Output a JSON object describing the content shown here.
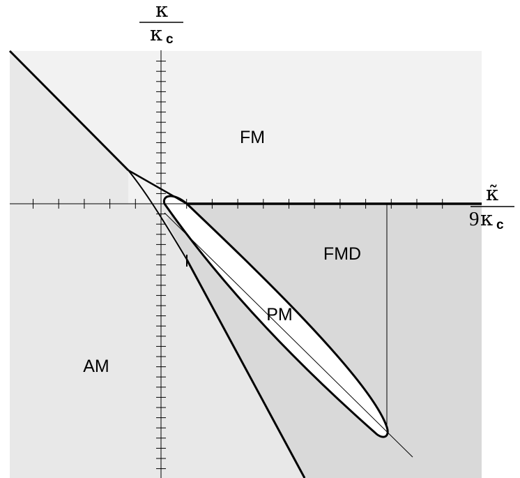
{
  "regions": {
    "fm": "FM",
    "fmd": "FMD",
    "pm": "PM",
    "am": "AM"
  },
  "axes": {
    "y": {
      "numerator": "κ",
      "denominator_symbol": "κ",
      "denominator_subscript": "c"
    },
    "x": {
      "numerator": "κ̃",
      "denominator_prefix": "9",
      "denominator_symbol": "κ",
      "denominator_subscript": "c"
    }
  },
  "colors": {
    "fm_fill": "#f2f2f2",
    "am_fill": "#e8e8e8",
    "fmd_fill": "#d9d9d9",
    "pm_fill": "#ffffff",
    "line": "#000000"
  }
}
